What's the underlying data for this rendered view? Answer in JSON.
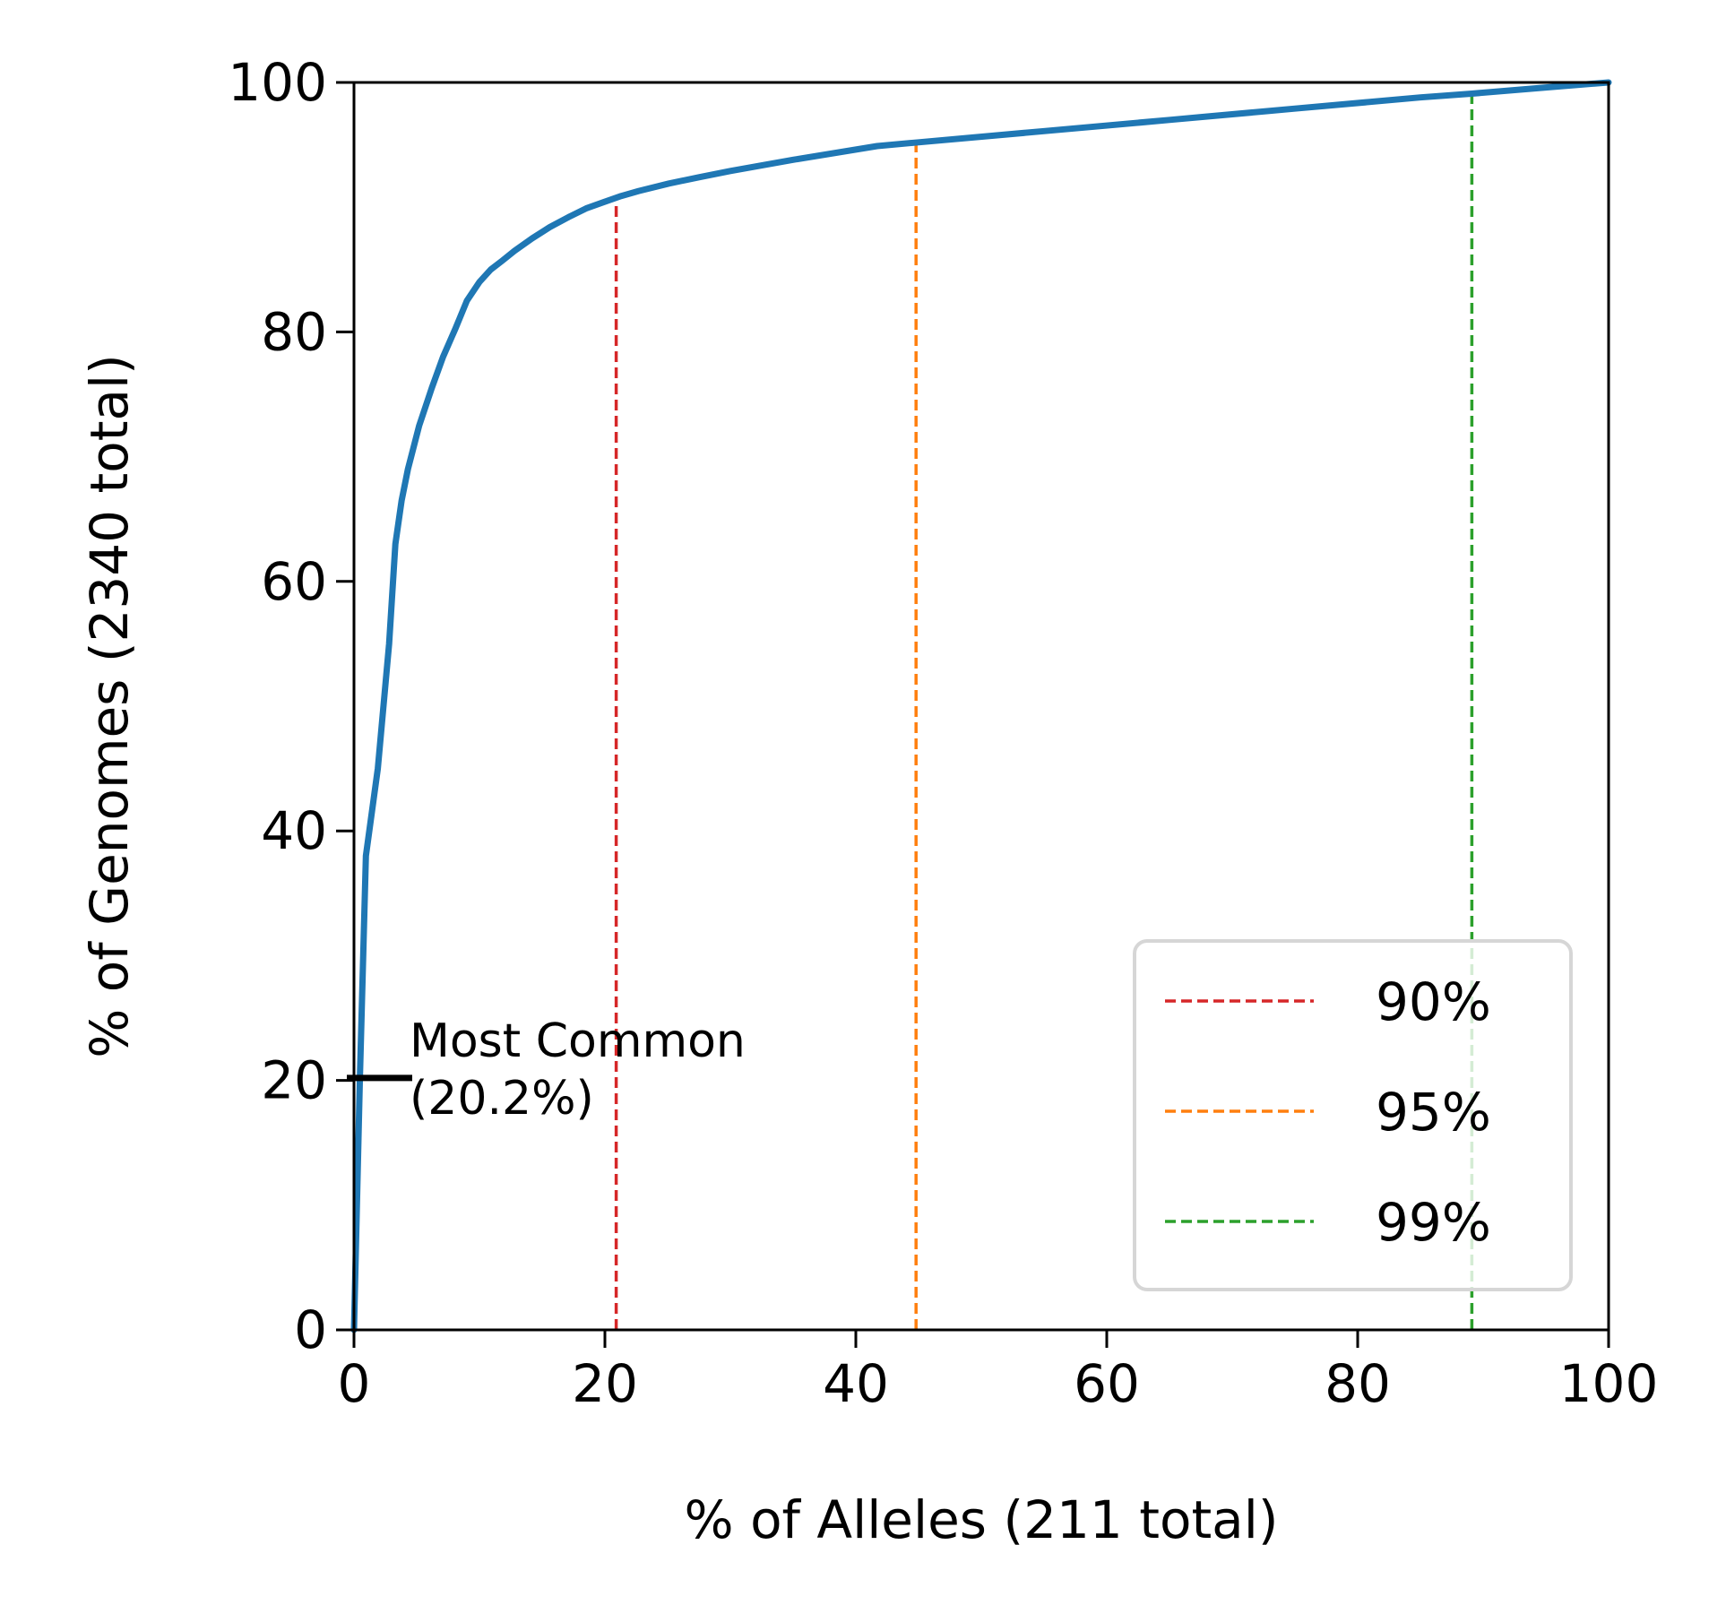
{
  "chart_data": {
    "type": "line",
    "title": "",
    "xlabel": "% of Alleles (211 total)",
    "ylabel": "% of Genomes (2340 total)",
    "xlim": [
      0,
      100
    ],
    "ylim": [
      0,
      100
    ],
    "xticks": [
      "0",
      "20",
      "40",
      "60",
      "80",
      "100"
    ],
    "yticks": [
      "0",
      "20",
      "40",
      "60",
      "80",
      "100"
    ],
    "grid": false,
    "legend_position": "lower-right",
    "series": [
      {
        "color": "#1f77b4",
        "x": [
          0,
          0.47,
          0.95,
          1.9,
          2.8,
          3.3,
          3.8,
          4.3,
          5.2,
          6.2,
          7.1,
          8.1,
          9.0,
          10.0,
          10.9,
          11.8,
          12.8,
          14.2,
          15.6,
          17.1,
          18.5,
          19.9,
          21.3,
          22.7,
          25.1,
          27.5,
          30.0,
          35.0,
          41.7,
          45.0,
          55.0,
          65.0,
          75.0,
          85.0,
          89.1,
          95.0,
          100.0
        ],
        "y": [
          0,
          20.2,
          38.0,
          45.0,
          55.0,
          63.0,
          66.5,
          69.0,
          72.5,
          75.5,
          78.0,
          80.3,
          82.5,
          84.0,
          85.0,
          85.7,
          86.5,
          87.5,
          88.4,
          89.2,
          89.9,
          90.4,
          90.9,
          91.3,
          91.9,
          92.4,
          92.9,
          93.8,
          94.9,
          95.2,
          96.1,
          97.0,
          97.9,
          98.8,
          99.1,
          99.6,
          100.0
        ]
      }
    ],
    "thresholds": [
      {
        "label": "90%",
        "x": 20.9,
        "y_top": 90.2,
        "color": "#d62728"
      },
      {
        "label": "95%",
        "x": 44.8,
        "y_top": 95.1,
        "color": "#ff7f0e"
      },
      {
        "label": "99%",
        "x": 89.1,
        "y_top": 99.0,
        "color": "#2ca02c"
      }
    ],
    "annotation": {
      "lines": [
        "Most Common",
        "(20.2%)"
      ],
      "x": 0,
      "y": 20.2
    }
  }
}
